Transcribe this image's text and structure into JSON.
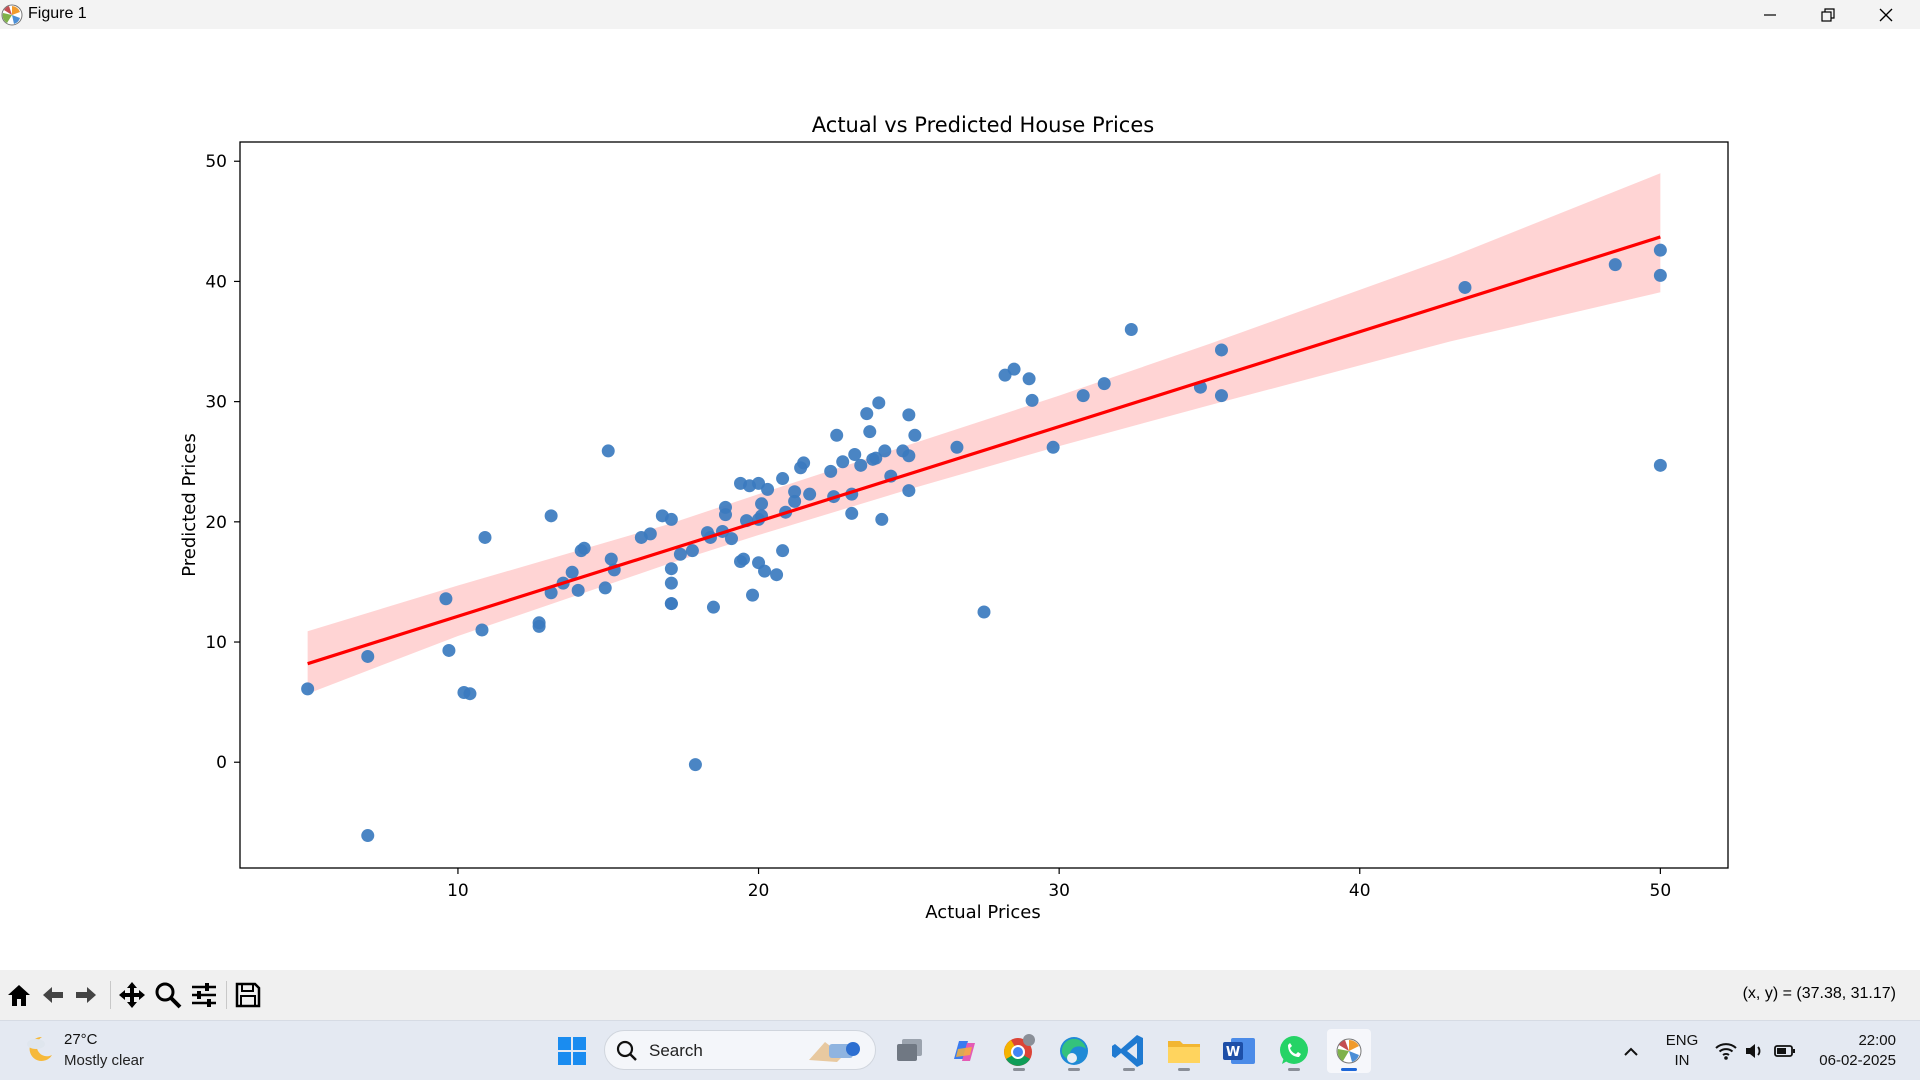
{
  "window": {
    "title": "Figure 1",
    "app_icon": "matplotlib-icon",
    "controls": [
      "minimize-icon",
      "restore-icon",
      "close-icon"
    ]
  },
  "chart_data": {
    "type": "scatter",
    "title": "Actual vs Predicted House Prices",
    "xlabel": "Actual Prices",
    "ylabel": "Predicted Prices",
    "xlim": [
      2.75,
      52.25
    ],
    "ylim": [
      -8.8,
      51.6
    ],
    "xticks": [
      10,
      20,
      30,
      40,
      50
    ],
    "yticks": [
      0,
      10,
      20,
      30,
      40,
      50
    ],
    "grid": false,
    "legend": "none",
    "colors": {
      "points": "#3b7bbf",
      "line": "#ff0000",
      "band": "#ffcccc"
    },
    "series": [
      {
        "type": "scatter",
        "x": [
          5.0,
          7.0,
          7.0,
          9.6,
          9.7,
          10.2,
          10.4,
          10.8,
          10.9,
          12.7,
          12.7,
          13.1,
          13.1,
          13.5,
          13.8,
          14.0,
          14.1,
          14.2,
          14.9,
          15.0,
          15.1,
          15.2,
          16.1,
          16.4,
          16.8,
          17.1,
          17.1,
          17.1,
          17.1,
          17.1,
          17.4,
          17.8,
          17.9,
          18.3,
          18.4,
          18.5,
          18.8,
          18.9,
          18.9,
          19.1,
          19.4,
          19.4,
          19.5,
          19.6,
          19.7,
          19.8,
          20.0,
          20.0,
          20.0,
          20.1,
          20.1,
          20.2,
          20.3,
          20.6,
          20.8,
          20.8,
          20.9,
          21.2,
          21.2,
          21.4,
          21.5,
          21.7,
          22.4,
          22.5,
          22.6,
          22.8,
          23.1,
          23.1,
          23.2,
          23.4,
          23.6,
          23.7,
          23.8,
          23.9,
          24.0,
          24.1,
          24.2,
          24.4,
          24.8,
          25.0,
          25.0,
          25.0,
          25.2,
          26.6,
          27.5,
          28.2,
          28.5,
          29.0,
          29.1,
          29.8,
          30.8,
          31.5,
          32.4,
          34.7,
          35.4,
          35.4,
          43.5,
          48.5,
          50.0,
          50.0,
          50.0
        ],
        "y": [
          6.1,
          -6.1,
          8.8,
          13.6,
          9.3,
          5.8,
          5.7,
          11.0,
          18.7,
          11.3,
          11.6,
          14.1,
          20.5,
          14.9,
          15.8,
          14.3,
          17.6,
          17.8,
          14.5,
          25.9,
          16.9,
          16.0,
          18.7,
          19.0,
          20.5,
          20.2,
          16.1,
          14.9,
          13.2,
          13.2,
          17.3,
          17.6,
          -0.2,
          19.1,
          18.7,
          12.9,
          19.2,
          20.6,
          21.2,
          18.6,
          16.7,
          23.2,
          16.9,
          20.1,
          23.0,
          13.9,
          20.2,
          23.2,
          16.6,
          20.5,
          21.5,
          15.9,
          22.7,
          15.6,
          23.6,
          17.6,
          20.8,
          21.7,
          22.5,
          24.5,
          24.9,
          22.3,
          24.2,
          22.1,
          27.2,
          25.0,
          20.7,
          22.3,
          25.6,
          24.7,
          29.0,
          27.5,
          25.2,
          25.3,
          29.9,
          20.2,
          25.9,
          23.8,
          25.9,
          28.9,
          25.5,
          22.6,
          27.2,
          26.2,
          12.5,
          32.2,
          32.7,
          31.9,
          30.1,
          26.2,
          30.5,
          31.5,
          36.0,
          31.2,
          34.3,
          30.5,
          39.5,
          41.4,
          42.6,
          40.5,
          24.7
        ]
      },
      {
        "type": "line",
        "x": [
          5.0,
          50.0
        ],
        "y": [
          8.2,
          43.7
        ]
      },
      {
        "type": "band",
        "x": [
          5.0,
          10,
          17,
          20,
          25,
          30,
          35,
          43,
          50
        ],
        "y_lower": [
          5.7,
          10.5,
          16.5,
          18.9,
          22.7,
          26.3,
          29.7,
          35.0,
          39.1
        ],
        "y_upper": [
          10.9,
          14.7,
          19.8,
          22.3,
          26.4,
          30.5,
          34.8,
          42.0,
          49.0
        ]
      }
    ]
  },
  "toolbar": {
    "buttons": [
      "home-icon",
      "back-icon",
      "forward-icon",
      "pan-icon",
      "zoom-icon",
      "configure-subplots-icon",
      "save-icon"
    ],
    "coords_text": "(x, y) = (37.38, 31.17)"
  },
  "taskbar": {
    "weather": {
      "temp": "27°C",
      "desc": "Mostly clear",
      "icon": "moon-cloud-icon"
    },
    "search_label": "Search",
    "apps": [
      "start-icon",
      "task-view-icon",
      "copilot-icon",
      "chrome-icon",
      "edge-icon",
      "vscode-icon",
      "file-explorer-icon",
      "word-icon",
      "whatsapp-icon",
      "matplotlib-icon"
    ],
    "language": [
      "ENG",
      "IN"
    ],
    "tray": [
      "chevron-up-icon",
      "wifi-icon",
      "volume-icon",
      "battery-icon"
    ],
    "time": "22:00",
    "date": "06-02-2025"
  }
}
